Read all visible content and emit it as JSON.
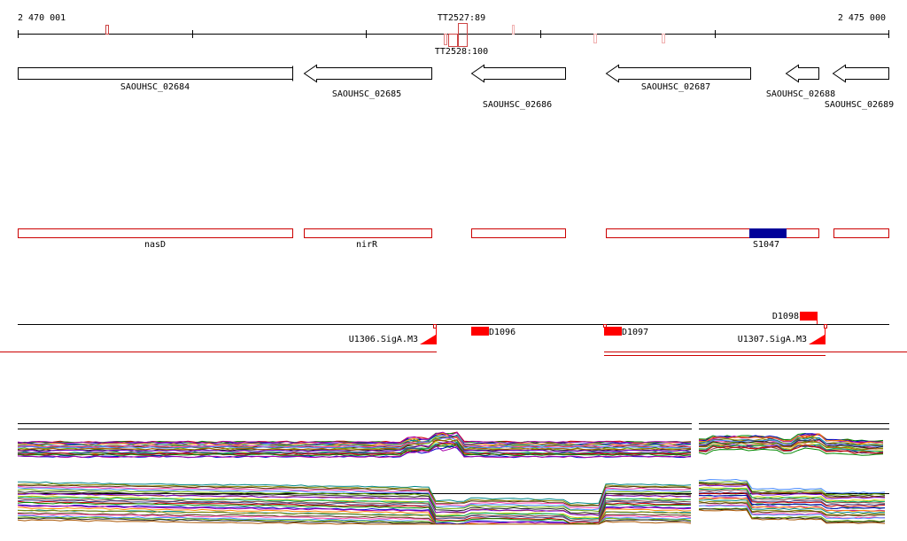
{
  "ruler": {
    "start_label": "2 470 001",
    "end_label": "2 475 000",
    "terminator_labels": [
      "TT2527:89",
      "TT2528:100"
    ]
  },
  "genes": [
    {
      "id": "g1",
      "label": "SAOUHSC_02684",
      "strand": "+"
    },
    {
      "id": "g2",
      "label": "SAOUHSC_02685",
      "strand": "-"
    },
    {
      "id": "g3",
      "label": "SAOUHSC_02686",
      "strand": "-"
    },
    {
      "id": "g4",
      "label": "SAOUHSC_02687",
      "strand": "-"
    },
    {
      "id": "g5",
      "label": "SAOUHSC_02688",
      "strand": "-"
    },
    {
      "id": "g6",
      "label": "SAOUHSC_02689",
      "strand": "-"
    }
  ],
  "annotations": [
    {
      "id": "a1",
      "label": "nasD"
    },
    {
      "id": "a2",
      "label": "nirR"
    },
    {
      "id": "a3",
      "label": ""
    },
    {
      "id": "a4",
      "label": "S1047",
      "highlight_color": "#000099"
    },
    {
      "id": "a5",
      "label": ""
    }
  ],
  "features": {
    "promoters": [
      "U1306.SigA.M3",
      "U1307.SigA.M3"
    ],
    "d_elements": [
      "D1096",
      "D1097",
      "D1098"
    ]
  },
  "colors": {
    "gene_outline": "#000000",
    "annotation_outline": "#cc0000",
    "feature_fill": "#ff0000",
    "highlight": "#000099",
    "terminator": "#e08080"
  }
}
